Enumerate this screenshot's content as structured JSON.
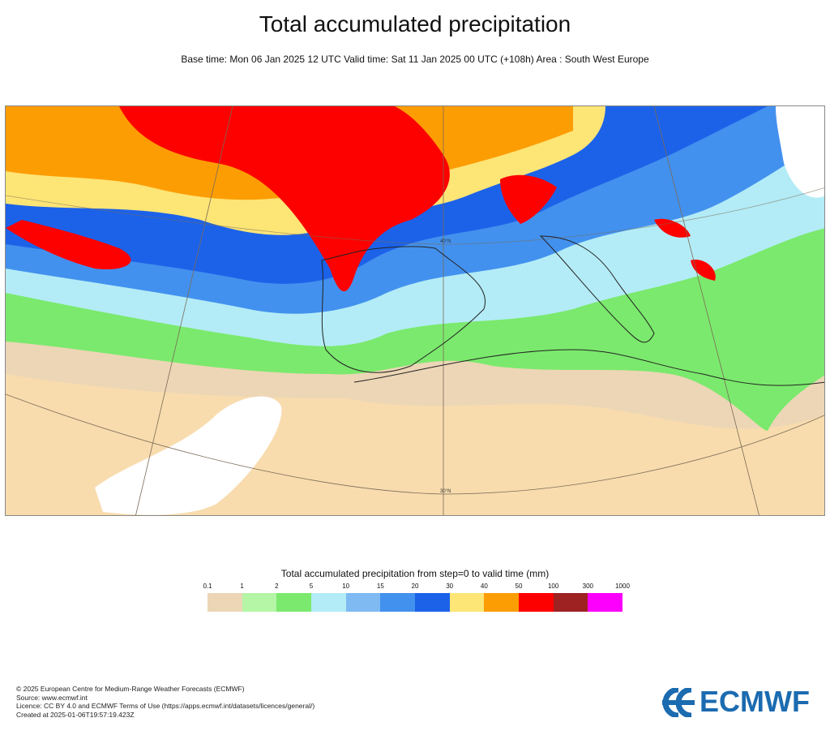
{
  "header": {
    "title": "Total accumulated precipitation",
    "subtitle": "Base time: Mon 06 Jan 2025 12 UTC Valid time: Sat 11 Jan 2025 00 UTC (+108h) Area : South West Europe"
  },
  "map": {
    "labels": {
      "lat_30n": "30°N",
      "lat_40n": "40°N"
    }
  },
  "legend": {
    "title": "Total accumulated precipitation from step=0 to valid time (mm)",
    "ticks": [
      "0.1",
      "1",
      "2",
      "5",
      "10",
      "15",
      "20",
      "30",
      "40",
      "50",
      "100",
      "300",
      "1000"
    ],
    "colors": [
      "#ecd6b6",
      "#b5f5a6",
      "#7be96d",
      "#b3ecf7",
      "#7fbaf2",
      "#4391ee",
      "#1c62e9",
      "#fde576",
      "#fd9d04",
      "#fd0000",
      "#9e2222",
      "#fd00fd"
    ]
  },
  "footer": {
    "line1": "© 2025 European Centre for Medium-Range Weather Forecasts (ECMWF)",
    "line2": "Source: www.ecmwf.int",
    "line3": "Licence: CC BY 4.0 and ECMWF Terms of Use (https://apps.ecmwf.int/datasets/licences/general/)",
    "line4": "Created at 2025-01-06T19:57:19.423Z"
  },
  "logo": {
    "text": "ECMWF",
    "color": "#1b6bb0"
  }
}
